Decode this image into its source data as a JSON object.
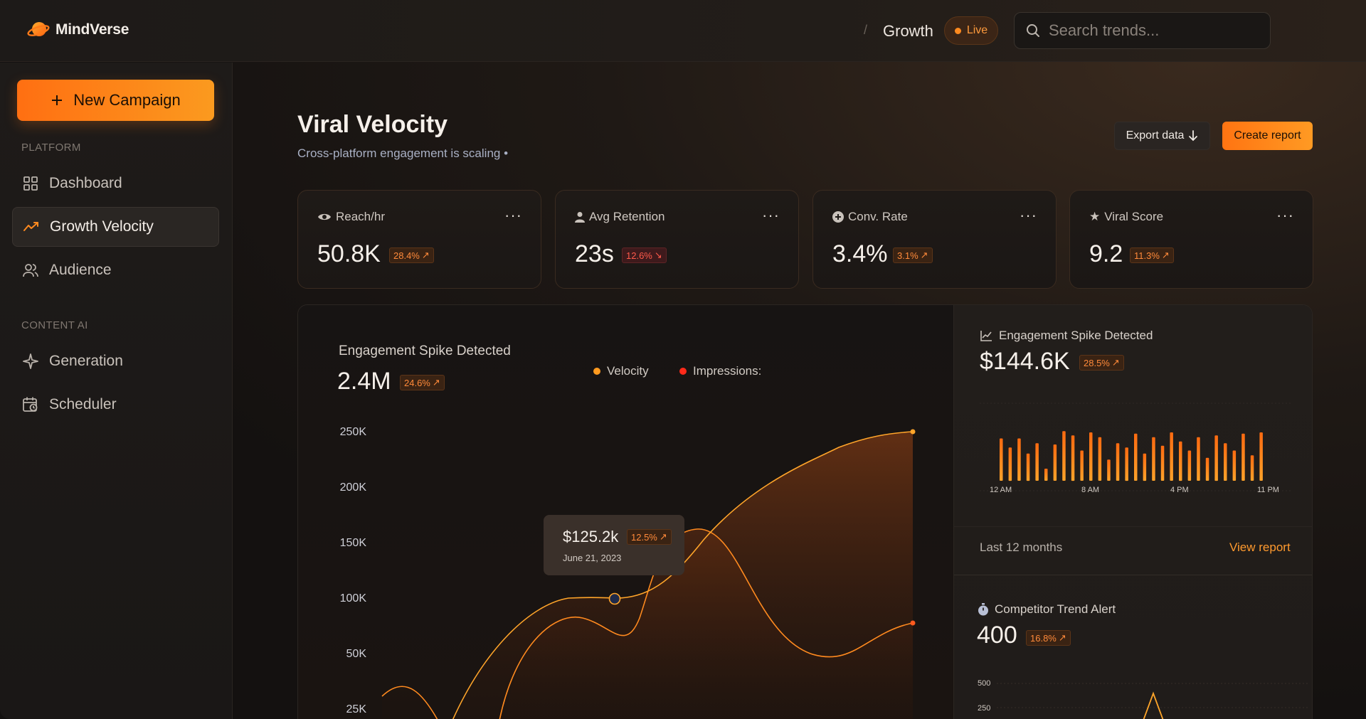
{
  "app": {
    "name": "MindVerse"
  },
  "header": {
    "breadcrumb": "Growth",
    "live_label": "Live",
    "search_placeholder": "Search trends..."
  },
  "sidebar": {
    "new_button": "New Campaign",
    "sections": [
      {
        "label": "PLATFORM",
        "items": [
          {
            "label": "Dashboard",
            "icon": "grid-icon"
          },
          {
            "label": "Growth Velocity",
            "icon": "trend-up-icon",
            "active": true
          },
          {
            "label": "Audience",
            "icon": "users-icon"
          }
        ]
      },
      {
        "label": "CONTENT AI",
        "items": [
          {
            "label": "Generation",
            "icon": "sparkle-icon"
          },
          {
            "label": "Scheduler",
            "icon": "calendar-clock-icon"
          }
        ]
      }
    ]
  },
  "page": {
    "title": "Viral Velocity",
    "subtitle": "Cross-platform engagement is scaling •",
    "export_label": "Export data",
    "create_label": "Create report"
  },
  "kpis": [
    {
      "label": "Reach/hr",
      "value": "50.8K",
      "change": "28.4%",
      "direction": "up",
      "icon": "eye-icon"
    },
    {
      "label": "Avg Retention",
      "value": "23s",
      "change": "12.6%",
      "direction": "down",
      "icon": "person-icon"
    },
    {
      "label": "Conv. Rate",
      "value": "3.4%",
      "change": "3.1%",
      "direction": "up",
      "icon": "plus-circle-icon"
    },
    {
      "label": "Viral Score",
      "value": "9.2",
      "change": "11.3%",
      "direction": "up",
      "icon": "star-icon"
    }
  ],
  "main_chart": {
    "title": "Engagement Spike Detected",
    "value": "2.4M",
    "change": "24.6%",
    "legend": [
      "Velocity",
      "Impressions:"
    ],
    "y_ticks": [
      "250K",
      "200K",
      "150K",
      "100K",
      "50K",
      "25K"
    ],
    "tooltip": {
      "value": "$125.2k",
      "change": "12.5%",
      "date": "June 21, 2023"
    }
  },
  "chart_data": [
    {
      "type": "area",
      "title": "Engagement Spike Detected",
      "ylabel": "",
      "ylim": [
        0,
        250000
      ],
      "series": [
        {
          "name": "Velocity",
          "values": [
            18000,
            8000,
            60000,
            100000,
            100000,
            110000,
            150000,
            190000,
            220000,
            225000
          ]
        },
        {
          "name": "Impressions:",
          "values": [
            22000,
            5000,
            70000,
            60000,
            150000,
            160000,
            80000,
            60000,
            70000
          ]
        }
      ]
    },
    {
      "type": "bar",
      "title": "Engagement Spike Detected",
      "x_tick_labels": [
        "12 AM",
        "8 AM",
        "4 PM",
        "11 PM"
      ],
      "values": [
        0.7,
        0.55,
        0.7,
        0.45,
        0.62,
        0.2,
        0.6,
        0.82,
        0.75,
        0.5,
        0.8,
        0.72,
        0.35,
        0.62,
        0.55,
        0.78,
        0.45,
        0.72,
        0.58,
        0.8,
        0.65,
        0.5,
        0.72,
        0.38,
        0.75,
        0.62,
        0.5,
        0.78,
        0.42,
        0.8
      ]
    },
    {
      "type": "line",
      "title": "Competitor Trend Alert",
      "y_tick_labels": [
        "500",
        "250"
      ]
    }
  ],
  "right_panel": {
    "top": {
      "title": "Engagement Spike Detected",
      "value": "$144.6K",
      "change": "28.5%",
      "x_labels": [
        "12 AM",
        "8 AM",
        "4 PM",
        "11 PM"
      ],
      "footer_left": "Last 12 months",
      "footer_right": "View report"
    },
    "bottom": {
      "title": "Competitor Trend Alert",
      "value": "400",
      "change": "16.8%",
      "y_labels": [
        "500",
        "250"
      ]
    }
  },
  "colors": {
    "accent": "#ff8a1f",
    "accent2": "#ffa52a",
    "impressions": "#ff3b1f",
    "down": "#ff5a4a"
  }
}
